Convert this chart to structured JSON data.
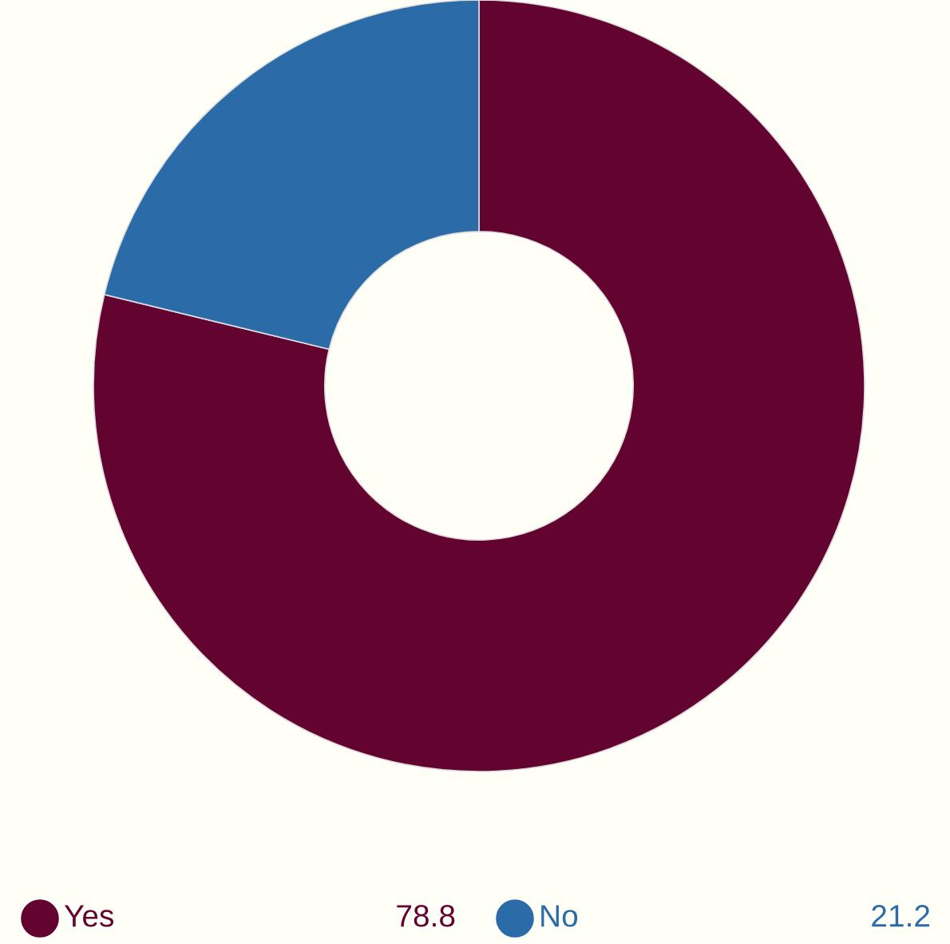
{
  "chart_data": {
    "type": "donut",
    "categories": [
      "Yes",
      "No"
    ],
    "values": [
      78.8,
      21.2
    ],
    "colors": [
      "#630330",
      "#2b6ca8"
    ],
    "legend": "bottom",
    "data_labels": true
  }
}
